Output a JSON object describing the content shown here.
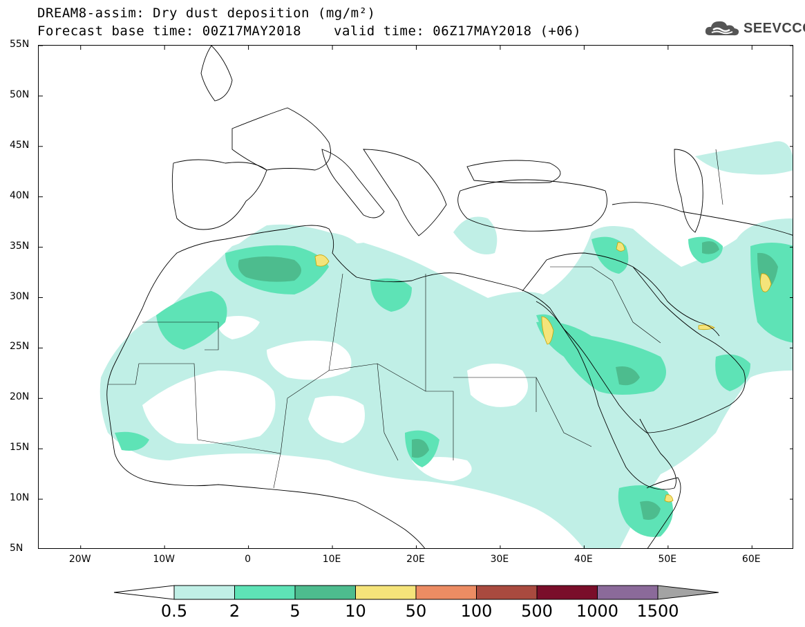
{
  "title": {
    "line1": "DREAM8-assim: Dry dust deposition (mg/m²)",
    "line2": "Forecast base time: 00Z17MAY2018",
    "valid": "valid time: 06Z17MAY2018 (+06)"
  },
  "logo": {
    "text": "SEEVCCC",
    "icon": "cloud-icon"
  },
  "map": {
    "lon_range": [
      -25,
      65
    ],
    "lat_range": [
      5,
      55
    ],
    "lat_ticks": [
      {
        "value": 55,
        "label": "55N"
      },
      {
        "value": 50,
        "label": "50N"
      },
      {
        "value": 45,
        "label": "45N"
      },
      {
        "value": 40,
        "label": "40N"
      },
      {
        "value": 35,
        "label": "35N"
      },
      {
        "value": 30,
        "label": "30N"
      },
      {
        "value": 25,
        "label": "25N"
      },
      {
        "value": 20,
        "label": "20N"
      },
      {
        "value": 15,
        "label": "15N"
      },
      {
        "value": 10,
        "label": "10N"
      },
      {
        "value": 5,
        "label": "5N"
      }
    ],
    "lon_ticks": [
      {
        "value": -20,
        "label": "20W"
      },
      {
        "value": -10,
        "label": "10W"
      },
      {
        "value": 0,
        "label": "0"
      },
      {
        "value": 10,
        "label": "10E"
      },
      {
        "value": 20,
        "label": "20E"
      },
      {
        "value": 30,
        "label": "30E"
      },
      {
        "value": 40,
        "label": "40E"
      },
      {
        "value": 50,
        "label": "50E"
      },
      {
        "value": 60,
        "label": "60E"
      }
    ]
  },
  "colorbar": {
    "levels": [
      "0.5",
      "2",
      "5",
      "10",
      "50",
      "100",
      "500",
      "1000",
      "1500"
    ],
    "colors": [
      "#ffffff",
      "#c0efe6",
      "#5ee3b6",
      "#4dbc8e",
      "#f5e47a",
      "#ec8c63",
      "#a94a3f",
      "#7a0e2a",
      "#8b6a9a",
      "#a3a3a3"
    ]
  }
}
